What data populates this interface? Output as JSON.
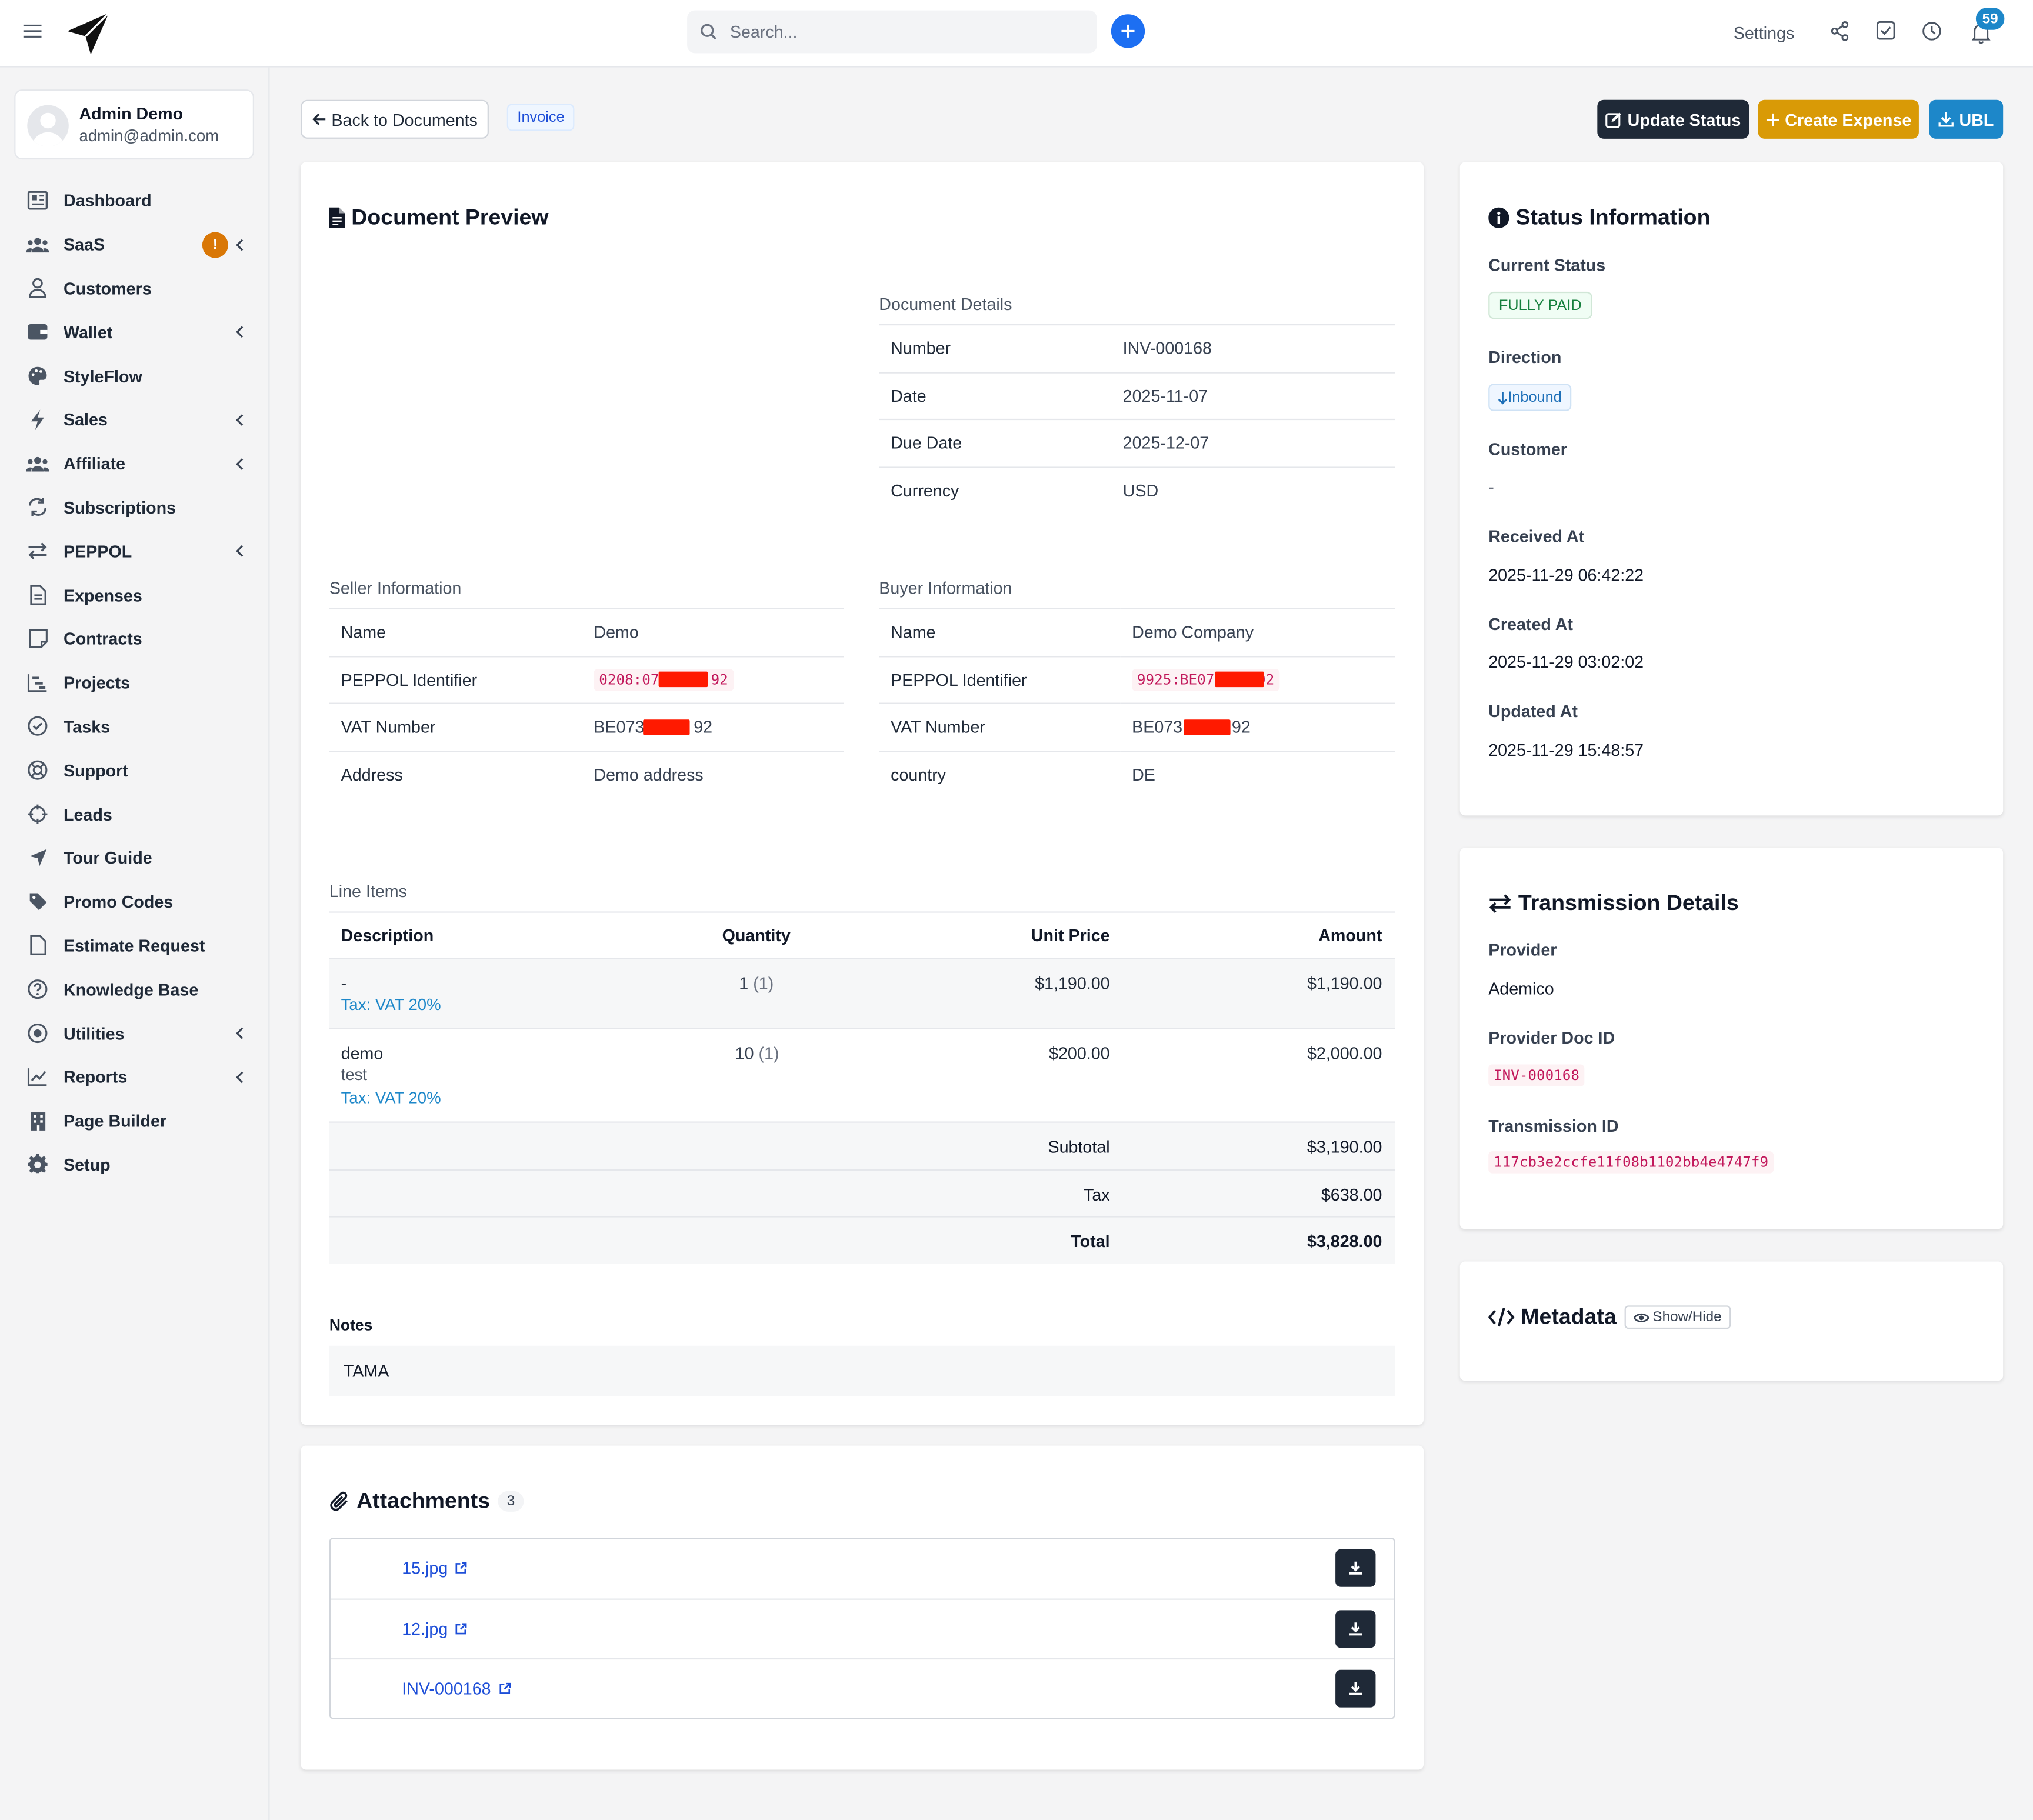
{
  "topbar": {
    "search_placeholder": "Search...",
    "settings_label": "Settings",
    "notification_count": "59"
  },
  "user": {
    "name": "Admin Demo",
    "email": "admin@admin.com"
  },
  "sidebar": {
    "items": [
      {
        "label": "Dashboard",
        "icon": "dashboard-icon"
      },
      {
        "label": "SaaS",
        "icon": "users-group-icon",
        "badge": "!",
        "has_chevron": true
      },
      {
        "label": "Customers",
        "icon": "user-icon"
      },
      {
        "label": "Wallet",
        "icon": "wallet-icon",
        "has_chevron": true
      },
      {
        "label": "StyleFlow",
        "icon": "palette-icon"
      },
      {
        "label": "Sales",
        "icon": "bolt-icon",
        "has_chevron": true
      },
      {
        "label": "Affiliate",
        "icon": "users-group-icon",
        "has_chevron": true
      },
      {
        "label": "Subscriptions",
        "icon": "repeat-icon"
      },
      {
        "label": "PEPPOL",
        "icon": "exchange-icon",
        "has_chevron": true
      },
      {
        "label": "Expenses",
        "icon": "file-icon"
      },
      {
        "label": "Contracts",
        "icon": "note-icon"
      },
      {
        "label": "Projects",
        "icon": "chart-gantt-icon"
      },
      {
        "label": "Tasks",
        "icon": "check-circle-icon"
      },
      {
        "label": "Support",
        "icon": "lifebuoy-icon"
      },
      {
        "label": "Leads",
        "icon": "crosshair-icon"
      },
      {
        "label": "Tour Guide",
        "icon": "navigation-icon"
      },
      {
        "label": "Promo Codes",
        "icon": "tag-icon"
      },
      {
        "label": "Estimate Request",
        "icon": "file-icon"
      },
      {
        "label": "Knowledge Base",
        "icon": "question-circle-icon"
      },
      {
        "label": "Utilities",
        "icon": "dot-circle-icon",
        "has_chevron": true
      },
      {
        "label": "Reports",
        "icon": "line-chart-icon",
        "has_chevron": true
      },
      {
        "label": "Page Builder",
        "icon": "building-icon"
      },
      {
        "label": "Setup",
        "icon": "gear-icon"
      }
    ]
  },
  "header": {
    "back_label": "Back to Documents",
    "doc_type": "Invoice",
    "update_status_label": "Update Status",
    "create_expense_label": "Create Expense",
    "ubl_label": "UBL"
  },
  "preview": {
    "title": "Document Preview",
    "document_details": {
      "label": "Document Details",
      "rows": [
        {
          "key": "Number",
          "value": "INV-000168"
        },
        {
          "key": "Date",
          "value": "2025-11-07"
        },
        {
          "key": "Due Date",
          "value": "2025-12-07"
        },
        {
          "key": "Currency",
          "value": "USD"
        }
      ]
    },
    "seller": {
      "label": "Seller Information",
      "name_key": "Name",
      "name": "Demo",
      "peppol_key": "PEPPOL Identifier",
      "peppol_prefix": "0208:07",
      "peppol_suffix": "92",
      "vat_key": "VAT Number",
      "vat_prefix": "BE073",
      "vat_suffix": "92",
      "address_key": "Address",
      "address": "Demo address"
    },
    "buyer": {
      "label": "Buyer Information",
      "name_key": "Name",
      "name": "Demo Company",
      "peppol_key": "PEPPOL Identifier",
      "peppol_prefix": "9925:BE07",
      "peppol_suffix": "92",
      "vat_key": "VAT Number",
      "vat_prefix": "BE073",
      "vat_suffix": "92",
      "country_key": "country",
      "country": "DE"
    },
    "line_items": {
      "label": "Line Items",
      "headers": {
        "description": "Description",
        "quantity": "Quantity",
        "unit_price": "Unit Price",
        "amount": "Amount"
      },
      "rows": [
        {
          "description": "-",
          "sub": "",
          "tax": "Tax: VAT 20%",
          "quantity": "1",
          "quantity_note": "(1)",
          "unit_price": "$1,190.00",
          "amount": "$1,190.00"
        },
        {
          "description": "demo",
          "sub": "test",
          "tax": "Tax: VAT 20%",
          "quantity": "10",
          "quantity_note": "(1)",
          "unit_price": "$200.00",
          "amount": "$2,000.00"
        }
      ],
      "subtotal_label": "Subtotal",
      "subtotal": "$3,190.00",
      "tax_label": "Tax",
      "tax": "$638.00",
      "total_label": "Total",
      "total": "$3,828.00"
    },
    "notes_label": "Notes",
    "notes": "TAMA"
  },
  "attachments": {
    "title": "Attachments",
    "count": "3",
    "files": [
      "15.jpg",
      "12.jpg",
      "INV-000168"
    ]
  },
  "status_info": {
    "title": "Status Information",
    "current_status_label": "Current Status",
    "current_status": "FULLY PAID",
    "direction_label": "Direction",
    "direction": "Inbound",
    "customer_label": "Customer",
    "customer": "-",
    "received_label": "Received At",
    "received": "2025-11-29 06:42:22",
    "created_label": "Created At",
    "created": "2025-11-29 03:02:02",
    "updated_label": "Updated At",
    "updated": "2025-11-29 15:48:57"
  },
  "transmission": {
    "title": "Transmission Details",
    "provider_label": "Provider",
    "provider": "Ademico",
    "provider_doc_label": "Provider Doc ID",
    "provider_doc": "INV-000168",
    "transmission_id_label": "Transmission ID",
    "transmission_id": "117cb3e2ccfe11f08b1102bb4e4747f9"
  },
  "metadata": {
    "title": "Metadata",
    "toggle_label": "Show/Hide"
  },
  "colors": {
    "primary_dark": "#1f2937",
    "warning": "#d99a06",
    "info": "#1d87c9",
    "accent_blue": "#1d6ff2",
    "redaction": "#ff1a00"
  }
}
